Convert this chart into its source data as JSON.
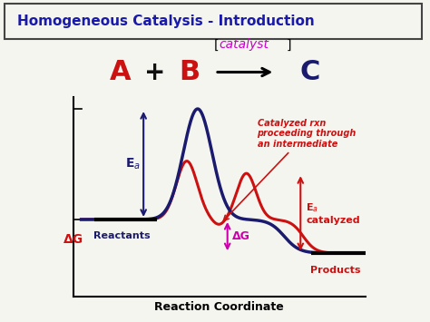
{
  "title": "Homogeneous Catalysis - Introduction",
  "title_color": "#1a1aaa",
  "background_color": "#f5f5f0",
  "red_color": "#cc1111",
  "blue_color": "#1a1a6e",
  "magenta_color": "#cc00aa",
  "black_color": "#111111",
  "catalyst_color": "#cc00cc",
  "xlabel": "Reaction Coordinate",
  "ylabel": "ΔG",
  "reactants_label": "Reactants",
  "products_label": "Products",
  "dG_label": "ΔG",
  "catalyzed_note": "Catalyzed rxn\nproceeding through\nan intermediate"
}
